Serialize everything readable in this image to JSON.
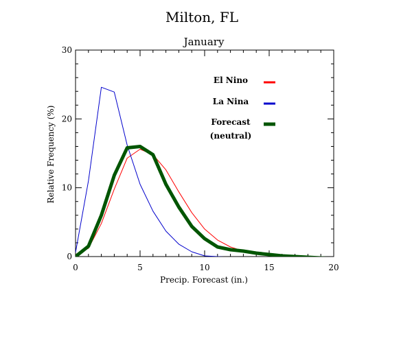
{
  "title": "Milton, FL",
  "subtitle": "January",
  "chart_data": {
    "type": "line",
    "xlabel": "Precip. Forecast (in.)",
    "ylabel": "Relative Frequency (%)",
    "xlim": [
      0,
      20
    ],
    "ylim": [
      0,
      30
    ],
    "x_ticks": [
      0,
      5,
      10,
      15,
      20
    ],
    "y_ticks": [
      0,
      10,
      20,
      30
    ],
    "x_tick_labels": [
      "0",
      "5",
      "10",
      "15",
      "20"
    ],
    "y_tick_labels": [
      "0",
      "10",
      "20",
      "30"
    ],
    "grid": false,
    "legend_position": "top-right",
    "x": [
      0,
      1,
      2,
      3,
      4,
      5,
      6,
      7,
      8,
      9,
      10,
      11,
      12,
      13,
      14,
      15,
      16,
      17,
      18,
      19,
      20
    ],
    "series": [
      {
        "name": "El Nino",
        "color": "#ff0000",
        "width": 1,
        "values": [
          0.3,
          1.2,
          4.8,
          9.8,
          14.3,
          15.6,
          14.8,
          12.6,
          9.4,
          6.4,
          4.0,
          2.4,
          1.4,
          0.8,
          0.5,
          0.2,
          0.1,
          0.0,
          0.0,
          -0.2,
          -0.3
        ]
      },
      {
        "name": "La Nina",
        "color": "#0000cc",
        "width": 1,
        "values": [
          0.6,
          11.0,
          24.6,
          23.9,
          16.2,
          10.5,
          6.6,
          3.7,
          1.8,
          0.7,
          0.1,
          0.0,
          -0.1,
          -0.1,
          -0.1,
          -0.1,
          -0.1,
          -0.1,
          -0.1,
          -0.1,
          -0.1
        ]
      },
      {
        "name": "Forecast (neutral)",
        "legend_lines": [
          "Forecast",
          "(neutral)"
        ],
        "color": "#005500",
        "width": 5,
        "values": [
          0.0,
          1.5,
          6.0,
          11.8,
          15.8,
          16.0,
          14.8,
          10.5,
          7.2,
          4.4,
          2.6,
          1.4,
          1.0,
          0.8,
          0.5,
          0.3,
          0.1,
          0.0,
          -0.1,
          -0.2,
          -0.3
        ]
      }
    ]
  }
}
